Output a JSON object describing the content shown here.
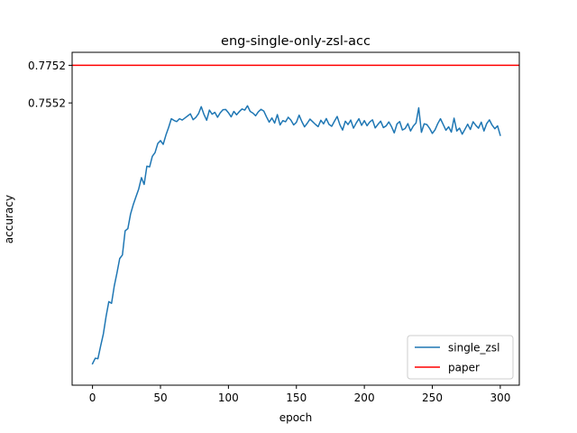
{
  "chart_data": {
    "type": "line",
    "title": "eng-single-only-zsl-acc",
    "xlabel": "epoch",
    "ylabel": "accuracy",
    "xlim": [
      -15,
      314
    ],
    "ylim": [
      0.6052,
      0.7821
    ],
    "x_ticks": [
      0,
      50,
      100,
      150,
      200,
      250,
      300
    ],
    "y_ticks": [
      0.7552,
      0.7752
    ],
    "y_tick_labels": [
      "0.7552",
      "0.7752"
    ],
    "grid": false,
    "legend_position": "lower-right",
    "series": [
      {
        "name": "single_zsl",
        "color": "#1f77b4",
        "x": [
          0,
          2,
          4,
          6,
          8,
          10,
          12,
          14,
          16,
          18,
          20,
          22,
          24,
          26,
          28,
          30,
          32,
          34,
          36,
          38,
          40,
          42,
          44,
          46,
          48,
          50,
          52,
          54,
          56,
          58,
          60,
          62,
          64,
          66,
          68,
          70,
          72,
          74,
          76,
          78,
          80,
          82,
          84,
          86,
          88,
          90,
          92,
          94,
          96,
          98,
          100,
          102,
          104,
          106,
          108,
          110,
          112,
          114,
          116,
          118,
          120,
          122,
          124,
          126,
          128,
          130,
          132,
          134,
          136,
          138,
          140,
          142,
          144,
          146,
          148,
          150,
          152,
          154,
          156,
          158,
          160,
          162,
          164,
          166,
          168,
          170,
          172,
          174,
          176,
          178,
          180,
          182,
          184,
          186,
          188,
          190,
          192,
          194,
          196,
          198,
          200,
          202,
          204,
          206,
          208,
          210,
          212,
          214,
          216,
          218,
          220,
          222,
          224,
          226,
          228,
          230,
          232,
          234,
          236,
          238,
          240,
          242,
          244,
          246,
          248,
          250,
          252,
          254,
          256,
          258,
          260,
          262,
          264,
          266,
          268,
          270,
          272,
          274,
          276,
          278,
          280,
          282,
          284,
          286,
          288,
          290,
          292,
          294,
          296,
          298,
          300
        ],
        "values": [
          0.6166,
          0.6195,
          0.6193,
          0.6261,
          0.6325,
          0.6418,
          0.6496,
          0.6487,
          0.6579,
          0.6649,
          0.6725,
          0.6744,
          0.6872,
          0.6884,
          0.6962,
          0.7012,
          0.7054,
          0.7095,
          0.7155,
          0.7119,
          0.7216,
          0.7212,
          0.7268,
          0.7288,
          0.7336,
          0.7352,
          0.7332,
          0.7381,
          0.7422,
          0.7468,
          0.7459,
          0.7453,
          0.7468,
          0.7461,
          0.7472,
          0.7483,
          0.7494,
          0.7463,
          0.7475,
          0.7495,
          0.7532,
          0.7491,
          0.746,
          0.7514,
          0.7492,
          0.7502,
          0.7476,
          0.75,
          0.7516,
          0.7517,
          0.75,
          0.7478,
          0.7507,
          0.7489,
          0.7506,
          0.752,
          0.7514,
          0.7537,
          0.7507,
          0.7498,
          0.7484,
          0.7505,
          0.7518,
          0.7509,
          0.7478,
          0.745,
          0.7472,
          0.7445,
          0.749,
          0.7435,
          0.7458,
          0.7452,
          0.7476,
          0.746,
          0.7435,
          0.7449,
          0.7487,
          0.7453,
          0.7425,
          0.7444,
          0.7466,
          0.7452,
          0.7438,
          0.7426,
          0.746,
          0.7441,
          0.7469,
          0.7438,
          0.7428,
          0.7455,
          0.748,
          0.7436,
          0.7408,
          0.7455,
          0.7437,
          0.7461,
          0.7418,
          0.7445,
          0.7468,
          0.7433,
          0.7458,
          0.7431,
          0.7451,
          0.7462,
          0.7419,
          0.7438,
          0.7455,
          0.7421,
          0.743,
          0.7451,
          0.7426,
          0.7393,
          0.744,
          0.7453,
          0.7408,
          0.7416,
          0.7442,
          0.7403,
          0.7429,
          0.7445,
          0.7526,
          0.7396,
          0.7441,
          0.7437,
          0.7417,
          0.739,
          0.7409,
          0.7442,
          0.7468,
          0.7438,
          0.7407,
          0.7425,
          0.7397,
          0.7471,
          0.7403,
          0.7418,
          0.7386,
          0.7412,
          0.7439,
          0.7411,
          0.7452,
          0.7433,
          0.7418,
          0.745,
          0.7403,
          0.7442,
          0.7462,
          0.7434,
          0.7415,
          0.743,
          0.738
        ]
      },
      {
        "name": "paper",
        "color": "#ff0000",
        "type": "hline",
        "y": 0.7752
      }
    ]
  }
}
